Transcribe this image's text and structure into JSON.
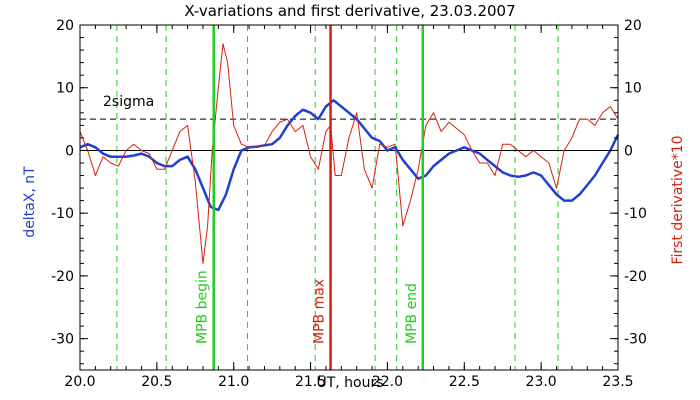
{
  "chart_data": {
    "type": "line",
    "title": "X-variations and first derivative, 23.03.2007",
    "xlabel": "UT, hours",
    "ylabel_left": "deltaX, nT",
    "ylabel_right": "First derivative*10",
    "xlim": [
      20.0,
      23.5
    ],
    "ylim": [
      -35,
      20
    ],
    "x_ticks": [
      "20.0",
      "20.5",
      "21.0",
      "21.5",
      "22.0",
      "22.5",
      "23.0",
      "23.5"
    ],
    "y_ticks": [
      "20",
      "10",
      "0",
      "-10",
      "-20",
      "-30"
    ],
    "colors": {
      "deltaX": "#1f3fd0",
      "derivative": "#d8200c",
      "green": "#22cc22",
      "red": "#d8200c"
    },
    "threshold": {
      "label": "2sigma",
      "value": 5
    },
    "markers": [
      {
        "label": "MPB begin",
        "x": 20.87,
        "color": "#22cc22"
      },
      {
        "label": "MPB max",
        "x": 21.63,
        "color": "#d8200c"
      },
      {
        "label": "MPB end",
        "x": 22.23,
        "color": "#22cc22"
      }
    ],
    "dashed_lines": [
      20.24,
      20.56,
      21.09,
      21.53,
      21.92,
      22.06,
      22.83,
      23.11
    ],
    "series": [
      {
        "key": "deltaX",
        "x": [
          20.0,
          20.05,
          20.1,
          20.15,
          20.2,
          20.25,
          20.3,
          20.35,
          20.4,
          20.45,
          20.5,
          20.55,
          20.6,
          20.65,
          20.7,
          20.75,
          20.8,
          20.85,
          20.9,
          20.95,
          21.0,
          21.05,
          21.1,
          21.15,
          21.2,
          21.25,
          21.3,
          21.35,
          21.4,
          21.45,
          21.5,
          21.55,
          21.6,
          21.65,
          21.7,
          21.75,
          21.8,
          21.85,
          21.9,
          21.95,
          22.0,
          22.05,
          22.1,
          22.15,
          22.2,
          22.25,
          22.3,
          22.35,
          22.4,
          22.45,
          22.5,
          22.55,
          22.6,
          22.65,
          22.7,
          22.75,
          22.8,
          22.85,
          22.9,
          22.95,
          23.0,
          23.05,
          23.1,
          23.15,
          23.2,
          23.25,
          23.3,
          23.35,
          23.4,
          23.45,
          23.5
        ],
        "values": [
          0.5,
          1.0,
          0.5,
          -0.5,
          -1.0,
          -1.0,
          -1.0,
          -0.8,
          -0.5,
          -1.0,
          -2.0,
          -2.5,
          -2.5,
          -1.5,
          -1.0,
          -3.0,
          -6.0,
          -9.0,
          -9.5,
          -7.0,
          -3.0,
          0.0,
          0.5,
          0.6,
          0.8,
          1.0,
          2.0,
          4.0,
          5.5,
          6.5,
          6.0,
          5.0,
          7.0,
          8.0,
          7.0,
          6.0,
          5.0,
          3.5,
          2.0,
          1.5,
          0.0,
          0.5,
          -1.5,
          -3.0,
          -4.5,
          -4.0,
          -2.5,
          -1.5,
          -0.5,
          0.0,
          0.5,
          0.0,
          -0.5,
          -1.5,
          -2.5,
          -3.5,
          -4.0,
          -4.2,
          -4.0,
          -3.5,
          -4.0,
          -5.5,
          -7.0,
          -8.0,
          -8.0,
          -7.0,
          -5.5,
          -4.0,
          -2.0,
          0.0,
          2.5
        ]
      },
      {
        "key": "derivative",
        "x": [
          20.0,
          20.05,
          20.1,
          20.15,
          20.2,
          20.25,
          20.3,
          20.35,
          20.4,
          20.45,
          20.5,
          20.55,
          20.6,
          20.65,
          20.7,
          20.75,
          20.8,
          20.83,
          20.86,
          20.9,
          20.93,
          20.96,
          21.0,
          21.05,
          21.1,
          21.15,
          21.2,
          21.25,
          21.3,
          21.35,
          21.4,
          21.45,
          21.5,
          21.55,
          21.6,
          21.63,
          21.66,
          21.7,
          21.75,
          21.8,
          21.85,
          21.9,
          21.95,
          22.0,
          22.05,
          22.1,
          22.15,
          22.2,
          22.25,
          22.3,
          22.35,
          22.4,
          22.45,
          22.5,
          22.55,
          22.6,
          22.65,
          22.7,
          22.75,
          22.8,
          22.85,
          22.9,
          22.95,
          23.0,
          23.05,
          23.1,
          23.15,
          23.2,
          23.25,
          23.3,
          23.35,
          23.4,
          23.45,
          23.5
        ],
        "values": [
          3.0,
          0.0,
          -4.0,
          -1.0,
          -2.0,
          -2.5,
          0.0,
          1.0,
          0.0,
          -0.5,
          -3.0,
          -3.0,
          0.0,
          3.0,
          4.0,
          -5.0,
          -18.0,
          -12.0,
          0.0,
          10.0,
          17.0,
          14.0,
          4.0,
          1.0,
          0.5,
          0.5,
          0.8,
          3.0,
          4.5,
          5.0,
          3.0,
          4.0,
          -1.0,
          -3.0,
          3.0,
          4.0,
          -4.0,
          -4.0,
          2.0,
          6.0,
          -3.0,
          -6.0,
          1.0,
          0.5,
          1.0,
          -12.0,
          -8.0,
          -3.0,
          4.0,
          6.0,
          3.0,
          4.5,
          3.5,
          2.5,
          0.0,
          -2.0,
          -2.0,
          -4.0,
          1.0,
          1.0,
          0.0,
          -1.0,
          0.0,
          -1.0,
          -2.0,
          -6.0,
          0.0,
          2.0,
          5.0,
          5.0,
          4.0,
          6.0,
          7.0,
          5.0
        ]
      }
    ]
  }
}
